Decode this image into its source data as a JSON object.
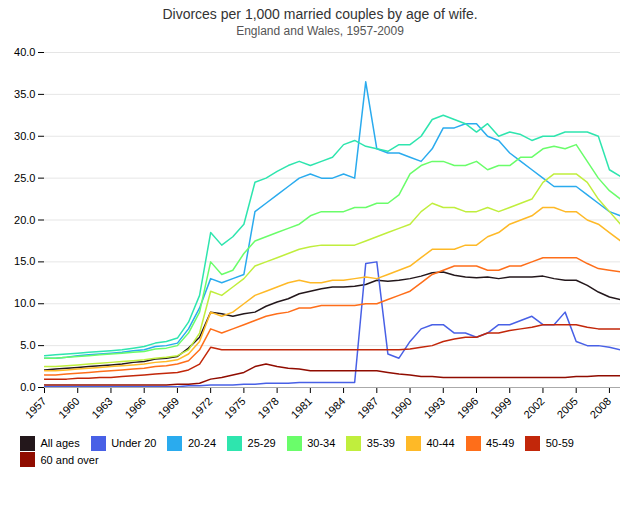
{
  "chart_data": {
    "type": "line",
    "title": "Divorces per 1,000 married couples by age of wife.",
    "subtitle": "England and Wales, 1957-2009",
    "x": [
      1957,
      1958,
      1959,
      1960,
      1961,
      1962,
      1963,
      1964,
      1965,
      1966,
      1967,
      1968,
      1969,
      1970,
      1971,
      1972,
      1973,
      1974,
      1975,
      1976,
      1977,
      1978,
      1979,
      1980,
      1981,
      1982,
      1983,
      1984,
      1985,
      1986,
      1987,
      1988,
      1989,
      1990,
      1991,
      1992,
      1993,
      1994,
      1995,
      1996,
      1997,
      1998,
      1999,
      2000,
      2001,
      2002,
      2003,
      2004,
      2005,
      2006,
      2007,
      2008,
      2009
    ],
    "series": [
      {
        "name": "All ages",
        "values": [
          2.1,
          2.2,
          2.3,
          2.4,
          2.5,
          2.6,
          2.7,
          2.8,
          3.0,
          3.1,
          3.4,
          3.5,
          3.7,
          4.7,
          6.0,
          9.0,
          8.8,
          8.5,
          8.8,
          9.0,
          9.7,
          10.2,
          10.6,
          11.2,
          11.5,
          11.8,
          12.0,
          12.0,
          12.1,
          12.3,
          12.8,
          12.7,
          12.8,
          13.0,
          13.3,
          13.7,
          13.8,
          13.4,
          13.2,
          13.1,
          13.2,
          13.0,
          13.2,
          13.2,
          13.2,
          13.3,
          13.0,
          12.8,
          12.8,
          12.2,
          11.4,
          10.8,
          10.5
        ]
      },
      {
        "name": "Under 20",
        "values": [
          0.1,
          0.1,
          0.1,
          0.1,
          0.1,
          0.1,
          0.1,
          0.1,
          0.1,
          0.1,
          0.1,
          0.1,
          0.1,
          0.2,
          0.2,
          0.3,
          0.3,
          0.3,
          0.4,
          0.4,
          0.5,
          0.5,
          0.5,
          0.6,
          0.6,
          0.6,
          0.6,
          0.6,
          0.6,
          14.8,
          15.0,
          4.0,
          3.5,
          5.5,
          7.0,
          7.5,
          7.5,
          6.5,
          6.5,
          6.0,
          6.5,
          7.5,
          7.5,
          8.0,
          8.5,
          7.5,
          7.5,
          9.0,
          5.5,
          5.0,
          5.0,
          4.8,
          4.5
        ]
      },
      {
        "name": "20-24",
        "values": [
          3.5,
          3.5,
          3.6,
          3.8,
          3.9,
          4.0,
          4.1,
          4.2,
          4.4,
          4.5,
          4.9,
          5.0,
          5.3,
          7.0,
          9.5,
          13.0,
          12.5,
          13.0,
          13.5,
          21.0,
          22.0,
          23.0,
          24.0,
          25.0,
          25.5,
          25.0,
          25.0,
          25.5,
          25.0,
          36.5,
          28.5,
          28.0,
          28.0,
          27.5,
          27.0,
          28.5,
          31.0,
          31.0,
          31.5,
          31.5,
          30.0,
          29.5,
          28.0,
          27.0,
          26.0,
          25.0,
          24.0,
          24.0,
          24.0,
          23.0,
          22.0,
          21.0,
          20.5
        ]
      },
      {
        "name": "25-29",
        "values": [
          3.8,
          3.9,
          4.0,
          4.1,
          4.2,
          4.3,
          4.4,
          4.5,
          4.7,
          4.9,
          5.3,
          5.5,
          5.9,
          7.8,
          11.0,
          18.5,
          17.0,
          18.0,
          19.5,
          24.5,
          25.0,
          25.8,
          26.5,
          27.0,
          26.5,
          27.0,
          27.5,
          29.0,
          29.5,
          28.8,
          28.5,
          28.2,
          29.0,
          29.0,
          30.0,
          32.0,
          32.5,
          32.0,
          31.5,
          30.5,
          31.5,
          30.0,
          30.5,
          30.2,
          29.5,
          30.0,
          30.0,
          30.5,
          30.5,
          30.5,
          30.0,
          26.0,
          25.2
        ]
      },
      {
        "name": "30-34",
        "values": [
          3.5,
          3.5,
          3.6,
          3.7,
          3.8,
          3.9,
          4.0,
          4.1,
          4.2,
          4.3,
          4.6,
          4.7,
          5.0,
          6.5,
          9.0,
          15.0,
          13.5,
          14.0,
          16.0,
          17.5,
          18.0,
          18.5,
          19.0,
          19.5,
          20.5,
          21.0,
          21.0,
          21.0,
          21.5,
          21.5,
          22.0,
          22.0,
          23.0,
          25.5,
          26.5,
          27.0,
          27.0,
          26.5,
          26.5,
          27.0,
          26.0,
          26.5,
          26.5,
          27.5,
          27.5,
          28.5,
          28.8,
          28.5,
          29.0,
          27.0,
          25.0,
          23.5,
          22.5
        ]
      },
      {
        "name": "35-39",
        "values": [
          2.5,
          2.5,
          2.6,
          2.7,
          2.8,
          2.9,
          3.0,
          3.1,
          3.2,
          3.3,
          3.5,
          3.6,
          3.8,
          4.5,
          6.5,
          11.5,
          11.0,
          12.0,
          13.0,
          14.5,
          15.0,
          15.5,
          16.0,
          16.5,
          16.8,
          17.0,
          17.0,
          17.0,
          17.0,
          17.5,
          18.0,
          18.5,
          19.0,
          19.5,
          21.0,
          22.0,
          21.5,
          21.5,
          21.0,
          21.0,
          21.5,
          21.0,
          21.5,
          22.0,
          22.5,
          24.5,
          25.5,
          25.5,
          25.5,
          24.5,
          22.5,
          21.0,
          19.5
        ]
      },
      {
        "name": "40-44",
        "values": [
          2.0,
          2.0,
          2.1,
          2.2,
          2.3,
          2.4,
          2.5,
          2.6,
          2.7,
          2.8,
          3.0,
          3.1,
          3.3,
          4.0,
          5.5,
          9.0,
          8.5,
          9.0,
          10.0,
          11.0,
          11.5,
          12.0,
          12.5,
          12.8,
          12.5,
          12.5,
          12.8,
          12.8,
          13.0,
          13.2,
          13.0,
          13.5,
          14.0,
          14.5,
          15.5,
          16.5,
          16.5,
          16.5,
          17.0,
          17.0,
          18.0,
          18.5,
          19.5,
          20.0,
          20.5,
          21.5,
          21.5,
          21.0,
          21.0,
          20.0,
          19.5,
          18.5,
          17.5
        ]
      },
      {
        "name": "45-49",
        "values": [
          1.5,
          1.5,
          1.6,
          1.7,
          1.8,
          1.9,
          2.0,
          2.1,
          2.2,
          2.3,
          2.5,
          2.6,
          2.8,
          3.2,
          4.5,
          7.0,
          6.5,
          7.0,
          7.5,
          8.0,
          8.5,
          8.8,
          9.0,
          9.5,
          9.5,
          9.8,
          9.8,
          9.8,
          9.8,
          10.0,
          10.0,
          10.5,
          11.0,
          11.5,
          12.5,
          13.5,
          14.0,
          14.5,
          14.5,
          14.5,
          14.0,
          14.0,
          14.5,
          14.5,
          15.0,
          15.5,
          15.5,
          15.5,
          15.5,
          14.8,
          14.2,
          14.0,
          13.8
        ]
      },
      {
        "name": "50-59",
        "values": [
          1.0,
          1.0,
          1.0,
          1.1,
          1.1,
          1.2,
          1.2,
          1.3,
          1.4,
          1.5,
          1.6,
          1.7,
          1.8,
          2.1,
          2.8,
          4.8,
          4.5,
          4.5,
          4.5,
          4.5,
          4.5,
          4.5,
          4.5,
          4.5,
          4.5,
          4.5,
          4.5,
          4.5,
          4.5,
          4.5,
          4.5,
          4.5,
          4.5,
          4.6,
          4.8,
          5.0,
          5.5,
          5.8,
          6.0,
          6.0,
          6.5,
          6.5,
          6.8,
          7.0,
          7.2,
          7.5,
          7.5,
          7.5,
          7.5,
          7.2,
          7.0,
          7.0,
          7.0
        ]
      },
      {
        "name": "60 and over",
        "values": [
          0.3,
          0.3,
          0.3,
          0.3,
          0.3,
          0.3,
          0.3,
          0.3,
          0.3,
          0.3,
          0.3,
          0.3,
          0.4,
          0.4,
          0.5,
          1.0,
          1.2,
          1.5,
          1.8,
          2.5,
          2.8,
          2.5,
          2.3,
          2.2,
          2.0,
          2.0,
          2.0,
          2.0,
          2.0,
          2.0,
          2.0,
          1.8,
          1.6,
          1.5,
          1.3,
          1.3,
          1.2,
          1.2,
          1.2,
          1.2,
          1.2,
          1.2,
          1.2,
          1.2,
          1.2,
          1.2,
          1.2,
          1.2,
          1.3,
          1.3,
          1.4,
          1.4,
          1.4
        ]
      }
    ],
    "xlim": [
      1957,
      2009
    ],
    "xticks": [
      1957,
      1960,
      1963,
      1966,
      1969,
      1972,
      1975,
      1978,
      1981,
      1984,
      1987,
      1990,
      1993,
      1996,
      1999,
      2002,
      2005,
      2008
    ],
    "ylim": [
      0,
      40
    ],
    "yticks": [
      {
        "value": 0,
        "label": "0.0"
      },
      {
        "value": 5,
        "label": "5.0"
      },
      {
        "value": 10,
        "label": "10.0"
      },
      {
        "value": 15,
        "label": "15.0"
      },
      {
        "value": 20,
        "label": "20.0"
      },
      {
        "value": 25,
        "label": "25.0"
      },
      {
        "value": 30,
        "label": "30.0"
      },
      {
        "value": 35,
        "label": "35.0"
      },
      {
        "value": 40,
        "label": "40.0"
      }
    ],
    "grid": true,
    "legend": "bottom"
  }
}
